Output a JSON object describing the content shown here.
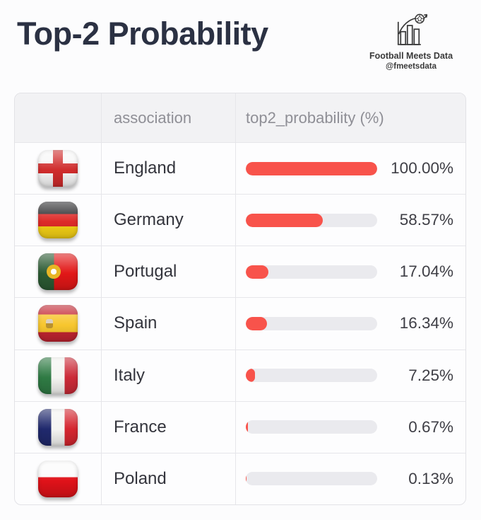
{
  "header": {
    "title": "Top-2 Probability",
    "logo": {
      "icon": "bar-chart-football-icon",
      "name": "Football Meets Data",
      "handle": "@fmeetsdata"
    }
  },
  "table": {
    "columns": {
      "flag_label": "",
      "association_label": "association",
      "probability_label": "top2_probability (%)"
    },
    "rows": [
      {
        "association": "England",
        "flag": "england-flag-icon",
        "value": 100.0,
        "display": "100.00%"
      },
      {
        "association": "Germany",
        "flag": "germany-flag-icon",
        "value": 58.57,
        "display": "58.57%"
      },
      {
        "association": "Portugal",
        "flag": "portugal-flag-icon",
        "value": 17.04,
        "display": "17.04%"
      },
      {
        "association": "Spain",
        "flag": "spain-flag-icon",
        "value": 16.34,
        "display": "16.34%"
      },
      {
        "association": "Italy",
        "flag": "italy-flag-icon",
        "value": 7.25,
        "display": "7.25%"
      },
      {
        "association": "France",
        "flag": "france-flag-icon",
        "value": 0.67,
        "display": "0.67%"
      },
      {
        "association": "Poland",
        "flag": "poland-flag-icon",
        "value": 0.13,
        "display": "0.13%"
      }
    ],
    "colors": {
      "bar_fill": "#f8534b",
      "bar_track": "#eaeaee",
      "header_bg": "#f2f2f4",
      "border": "#e4e4e8",
      "header_text": "#8f8f96",
      "row_text": "#33343c",
      "value_text": "#3e3e45",
      "title_text": "#2b3143"
    }
  },
  "chart_data": {
    "type": "bar",
    "categories": [
      "England",
      "Germany",
      "Portugal",
      "Spain",
      "Italy",
      "France",
      "Poland"
    ],
    "values": [
      100.0,
      58.57,
      17.04,
      16.34,
      7.25,
      0.67,
      0.13
    ],
    "title": "Top-2 Probability",
    "xlabel": "top2_probability (%)",
    "ylabel": "association",
    "xlim": [
      0,
      100
    ],
    "legend": false,
    "grid": false,
    "bar_color": "#f8534b",
    "source": "Football Meets Data @fmeetsdata"
  }
}
